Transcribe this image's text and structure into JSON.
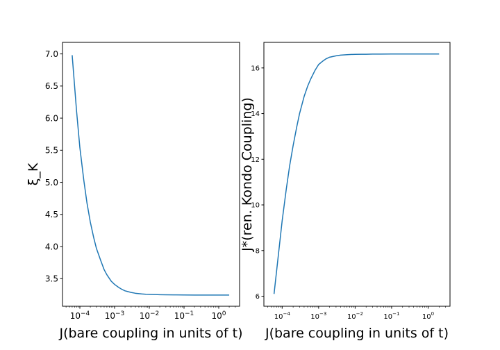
{
  "chart_data": [
    {
      "type": "line",
      "xscale": "log",
      "xlabel": "J(bare coupling in units of t)",
      "ylabel": "ξ_K",
      "xlim": [
        3.16e-05,
        3.98
      ],
      "ylim": [
        3.07,
        7.18
      ],
      "xticks": [
        {
          "value": 0.0001,
          "base": "10",
          "exp": "−4"
        },
        {
          "value": 0.001,
          "base": "10",
          "exp": "−3"
        },
        {
          "value": 0.01,
          "base": "10",
          "exp": "−2"
        },
        {
          "value": 0.1,
          "base": "10",
          "exp": "−1"
        },
        {
          "value": 1,
          "base": "10",
          "exp": "0"
        }
      ],
      "yticks": [
        "3.5",
        "4.0",
        "4.5",
        "5.0",
        "5.5",
        "6.0",
        "6.5",
        "7.0"
      ],
      "line_color": "#1f77b4",
      "series": [
        {
          "x": [
            6e-05,
            8e-05,
            0.0001,
            0.00013,
            0.00016,
            0.0002,
            0.00025,
            0.0003,
            0.0004,
            0.0005,
            0.0006,
            0.0008,
            0.001,
            0.0013,
            0.0016,
            0.002,
            0.003,
            0.004,
            0.006,
            0.008,
            0.01,
            0.015,
            0.02,
            0.03,
            0.05,
            0.1,
            0.2,
            0.5,
            1,
            2
          ],
          "y": [
            6.98,
            6.12,
            5.54,
            5.03,
            4.68,
            4.38,
            4.14,
            3.97,
            3.78,
            3.64,
            3.56,
            3.46,
            3.41,
            3.365,
            3.335,
            3.31,
            3.285,
            3.272,
            3.262,
            3.257,
            3.255,
            3.252,
            3.25,
            3.248,
            3.247,
            3.246,
            3.245,
            3.245,
            3.245,
            3.245
          ]
        }
      ]
    },
    {
      "type": "line",
      "xscale": "log",
      "xlabel": "J(bare coupling in units of t)",
      "ylabel": "J*(ren. Kondo Coupling)",
      "xlim": [
        3.16e-05,
        3.98
      ],
      "ylim": [
        5.56,
        17.12
      ],
      "xticks": [
        {
          "value": 0.0001,
          "base": "10",
          "exp": "−4"
        },
        {
          "value": 0.001,
          "base": "10",
          "exp": "−3"
        },
        {
          "value": 0.01,
          "base": "10",
          "exp": "−2"
        },
        {
          "value": 0.1,
          "base": "10",
          "exp": "−1"
        },
        {
          "value": 1,
          "base": "10",
          "exp": "0"
        }
      ],
      "yticks": [
        "6",
        "8",
        "10",
        "12",
        "14",
        "16"
      ],
      "line_color": "#1f77b4",
      "series": [
        {
          "x": [
            6e-05,
            8e-05,
            0.0001,
            0.00013,
            0.00016,
            0.0002,
            0.00025,
            0.0003,
            0.0004,
            0.0005,
            0.0006,
            0.0008,
            0.001,
            0.0013,
            0.0016,
            0.002,
            0.003,
            0.004,
            0.006,
            0.008,
            0.01,
            0.015,
            0.02,
            0.03,
            0.05,
            0.1,
            0.2,
            0.5,
            1,
            2
          ],
          "y": [
            6.1,
            7.9,
            9.3,
            10.7,
            11.7,
            12.6,
            13.4,
            14.0,
            14.75,
            15.2,
            15.5,
            15.9,
            16.15,
            16.3,
            16.4,
            16.47,
            16.53,
            16.56,
            16.58,
            16.59,
            16.595,
            16.6,
            16.6,
            16.605,
            16.605,
            16.61,
            16.61,
            16.61,
            16.61,
            16.61
          ]
        }
      ]
    }
  ]
}
